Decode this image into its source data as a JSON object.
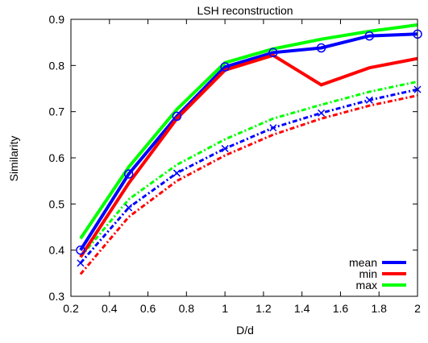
{
  "chart_data": {
    "type": "line",
    "title": "LSH reconstruction",
    "xlabel": "D/d",
    "ylabel": "Similarity",
    "xlim": [
      0.2,
      2.0
    ],
    "ylim": [
      0.3,
      0.9
    ],
    "xticks": [
      "0.2",
      "0.4",
      "0.6",
      "0.8",
      "1",
      "1.2",
      "1.4",
      "1.6",
      "1.8",
      "2"
    ],
    "yticks": [
      "0.3",
      "0.4",
      "0.5",
      "0.6",
      "0.7",
      "0.8",
      "0.9"
    ],
    "grid": false,
    "legend_position": "bottom-right",
    "series": [
      {
        "name": "mean",
        "color": "#0000ff",
        "style": "solid",
        "marker": "circle",
        "x": [
          0.25,
          0.5,
          0.75,
          1.0,
          1.25,
          1.5,
          1.75,
          2.0
        ],
        "y": [
          0.4,
          0.565,
          0.69,
          0.797,
          0.828,
          0.838,
          0.864,
          0.868
        ]
      },
      {
        "name": "min",
        "color": "#ff0000",
        "style": "solid",
        "x": [
          0.25,
          0.5,
          0.75,
          1.0,
          1.25,
          1.5,
          1.75,
          2.0
        ],
        "y": [
          0.385,
          0.545,
          0.685,
          0.79,
          0.822,
          0.758,
          0.795,
          0.815
        ]
      },
      {
        "name": "max",
        "color": "#00ff00",
        "style": "solid",
        "x": [
          0.25,
          0.5,
          0.75,
          1.0,
          1.25,
          1.5,
          1.75,
          2.0
        ],
        "y": [
          0.425,
          0.58,
          0.705,
          0.806,
          0.836,
          0.857,
          0.874,
          0.888
        ]
      },
      {
        "color": "#0000ff",
        "style": "dashdot",
        "marker": "x",
        "x": [
          0.25,
          0.5,
          0.75,
          1.0,
          1.25,
          1.5,
          1.75,
          2.0
        ],
        "y": [
          0.372,
          0.492,
          0.567,
          0.62,
          0.665,
          0.697,
          0.725,
          0.748
        ]
      },
      {
        "color": "#ff0000",
        "style": "dashdot",
        "x": [
          0.25,
          0.5,
          0.75,
          1.0,
          1.25,
          1.5,
          1.75,
          2.0
        ],
        "y": [
          0.348,
          0.472,
          0.55,
          0.605,
          0.65,
          0.685,
          0.713,
          0.735
        ]
      },
      {
        "color": "#00ff00",
        "style": "dashdot",
        "x": [
          0.25,
          0.5,
          0.75,
          1.0,
          1.25,
          1.5,
          1.75,
          2.0
        ],
        "y": [
          0.385,
          0.51,
          0.585,
          0.64,
          0.685,
          0.715,
          0.743,
          0.765
        ]
      }
    ]
  }
}
